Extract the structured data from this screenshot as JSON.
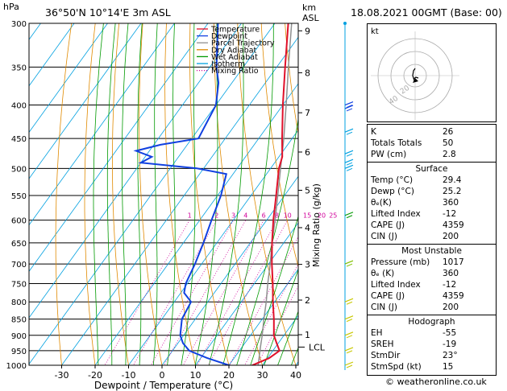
{
  "header": {
    "location": "36°50'N  10°14'E  3m  ASL",
    "datetime": "18.08.2021  00GMT  (Base: 00)",
    "hpa_label": "hPa",
    "km_label": "km",
    "asl_label": "ASL"
  },
  "chart_data": {
    "type": "skew-t log-p",
    "xlabel": "Dewpoint / Temperature (°C)",
    "right_label": "Mixing Ratio (g/kg)",
    "x_ticks": [
      -30,
      -20,
      -10,
      0,
      10,
      20,
      30,
      40
    ],
    "pressure_levels": [
      300,
      350,
      400,
      450,
      500,
      550,
      600,
      650,
      700,
      750,
      800,
      850,
      900,
      950,
      1000
    ],
    "height_km_ticks": [
      {
        "label": "9",
        "p": 308
      },
      {
        "label": "8",
        "p": 357
      },
      {
        "label": "7",
        "p": 411
      },
      {
        "label": "6",
        "p": 472
      },
      {
        "label": "5",
        "p": 540
      },
      {
        "label": "4",
        "p": 616
      },
      {
        "label": "3",
        "p": 701
      },
      {
        "label": "2",
        "p": 795
      },
      {
        "label": "1",
        "p": 898
      }
    ],
    "lcl_label": "LCL",
    "lcl_pressure": 938,
    "mixing_ratio_labels": [
      "1",
      "2",
      "3",
      "4",
      "6",
      "8",
      "10",
      "15",
      "20",
      "25"
    ],
    "mixing_ratio_values": [
      1,
      2,
      3,
      4,
      6,
      8,
      10,
      15,
      20,
      25
    ],
    "legend": [
      {
        "name": "Temperature",
        "color": "#e0102a",
        "style": "solid"
      },
      {
        "name": "Dewpoint",
        "color": "#1040e0",
        "style": "solid"
      },
      {
        "name": "Parcel Trajectory",
        "color": "#909090",
        "style": "solid"
      },
      {
        "name": "Dry Adiabat",
        "color": "#e08a00",
        "style": "solid"
      },
      {
        "name": "Wet Adiabat",
        "color": "#009a00",
        "style": "solid"
      },
      {
        "name": "Isotherm",
        "color": "#00a0e0",
        "style": "solid"
      },
      {
        "name": "Mixing Ratio",
        "color": "#d0009a",
        "style": "dotted"
      }
    ],
    "series": [
      {
        "name": "Temperature",
        "color": "#e0102a",
        "points": [
          [
            1013,
            29.4
          ],
          [
            1000,
            27.0
          ],
          [
            975,
            30.5
          ],
          [
            950,
            32.0
          ],
          [
            925,
            29.5
          ],
          [
            900,
            27.0
          ],
          [
            850,
            23.5
          ],
          [
            800,
            19.5
          ],
          [
            750,
            15.5
          ],
          [
            700,
            11.0
          ],
          [
            650,
            6.5
          ],
          [
            600,
            2.0
          ],
          [
            550,
            -2.5
          ],
          [
            500,
            -7.5
          ],
          [
            480,
            -9.0
          ],
          [
            450,
            -13.0
          ],
          [
            400,
            -20.0
          ],
          [
            350,
            -27.5
          ],
          [
            300,
            -36.0
          ]
        ]
      },
      {
        "name": "Dewpoint",
        "color": "#1040e0",
        "points": [
          [
            1013,
            25.2
          ],
          [
            1000,
            20.0
          ],
          [
            975,
            12.0
          ],
          [
            950,
            5.0
          ],
          [
            925,
            1.5
          ],
          [
            900,
            -1.0
          ],
          [
            850,
            -4.0
          ],
          [
            800,
            -5.0
          ],
          [
            775,
            -9.0
          ],
          [
            750,
            -10.5
          ],
          [
            700,
            -12.0
          ],
          [
            650,
            -14.0
          ],
          [
            600,
            -16.5
          ],
          [
            550,
            -19.0
          ],
          [
            510,
            -22.0
          ],
          [
            500,
            -32.0
          ],
          [
            490,
            -50.0
          ],
          [
            480,
            -48.0
          ],
          [
            470,
            -54.0
          ],
          [
            460,
            -48.0
          ],
          [
            450,
            -38.0
          ],
          [
            400,
            -40.0
          ],
          [
            370,
            -44.0
          ],
          [
            350,
            -48.0
          ],
          [
            300,
            -57.0
          ]
        ]
      },
      {
        "name": "Parcel Trajectory",
        "color": "#909090",
        "points": [
          [
            1013,
            29.4
          ],
          [
            938,
            25.5
          ],
          [
            900,
            23.5
          ],
          [
            850,
            20.5
          ],
          [
            800,
            17.5
          ],
          [
            750,
            14.0
          ],
          [
            700,
            10.5
          ],
          [
            650,
            6.5
          ],
          [
            600,
            2.5
          ],
          [
            550,
            -2.0
          ],
          [
            500,
            -7.0
          ],
          [
            450,
            -12.5
          ],
          [
            400,
            -19.0
          ],
          [
            350,
            -26.5
          ],
          [
            300,
            -35.0
          ]
        ]
      }
    ]
  },
  "hodograph": {
    "unit_label": "kt",
    "ring_labels": [
      "20",
      "40"
    ]
  },
  "indices": {
    "top": [
      {
        "key": "K",
        "value": "26"
      },
      {
        "key": "Totals Totals",
        "value": "50"
      },
      {
        "key": "PW (cm)",
        "value": "2.8"
      }
    ],
    "surface": {
      "title": "Surface",
      "rows": [
        {
          "key": "Temp (°C)",
          "value": "29.4"
        },
        {
          "key": "Dewp (°C)",
          "value": "25.2"
        },
        {
          "key": "θₑ(K)",
          "value": "360"
        },
        {
          "key": "Lifted Index",
          "value": "-12"
        },
        {
          "key": "CAPE (J)",
          "value": "4359"
        },
        {
          "key": "CIN (J)",
          "value": "200"
        }
      ]
    },
    "most_unstable": {
      "title": "Most Unstable",
      "rows": [
        {
          "key": "Pressure (mb)",
          "value": "1017"
        },
        {
          "key": "θₑ (K)",
          "value": "360"
        },
        {
          "key": "Lifted Index",
          "value": "-12"
        },
        {
          "key": "CAPE (J)",
          "value": "4359"
        },
        {
          "key": "CIN (J)",
          "value": "200"
        }
      ]
    },
    "hodograph": {
      "title": "Hodograph",
      "rows": [
        {
          "key": "EH",
          "value": "-55"
        },
        {
          "key": "SREH",
          "value": "-19"
        },
        {
          "key": "StmDir",
          "value": "23°"
        },
        {
          "key": "StmSpd (kt)",
          "value": "15"
        }
      ]
    }
  },
  "footer": {
    "copyright": "© weatheronline.co.uk"
  }
}
